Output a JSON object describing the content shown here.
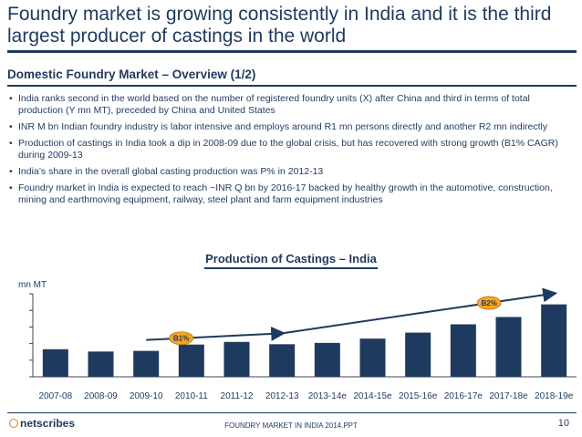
{
  "slide": {
    "title": "Foundry market is growing consistently in India and it is the third largest producer of castings in the world",
    "subtitle": "Domestic Foundry Market – Overview (1/2)",
    "bullets": [
      "India ranks second in the world based on the number of registered foundry units (X) after China and third in terms of total production (Y mn MT), preceded by China and United States",
      "INR M bn Indian foundry industry is labor intensive and employs around R1 mn persons directly and another R2 mn indirectly",
      " Production of castings in India took a dip in 2008-09 due to the global crisis, but has recovered with strong growth (B1% CAGR)  during 2009-13",
      "India’s share in the overall global casting production was P% in 2012-13",
      "Foundry market in India is expected to reach ~INR Q bn by 2016-17 backed by healthy growth in the automotive, construction, mining and earthmoving equipment, railway, steel plant and farm equipment industries"
    ],
    "bullet_char": "•"
  },
  "chart_data": {
    "type": "bar",
    "title": "Production of Castings – India",
    "ylabel": "mn MT",
    "xlabel": "",
    "categories": [
      "2007-08",
      "2008-09",
      "2009-10",
      "2010-11",
      "2011-12",
      "2012-13",
      "2013-14e",
      "2014-15e",
      "2015-16e",
      "2016-17e",
      "2017-18e",
      "2018-19e"
    ],
    "values": [
      8.3,
      7.6,
      7.8,
      9.7,
      10.5,
      9.8,
      10.2,
      11.5,
      13.3,
      15.8,
      18.0,
      21.8
    ],
    "ylim": [
      0,
      25
    ],
    "y_ticks": [
      0,
      5,
      10,
      15,
      20,
      25
    ],
    "tick_labels_shown": false,
    "bar_color": "#1f3a5f",
    "annotations": [
      {
        "label": "B1%",
        "from": "2009-10",
        "to": "2012-13",
        "color": "#f5a623"
      },
      {
        "label": "B2%",
        "from": "2012-13",
        "to": "2018-19e",
        "color": "#f5a623"
      }
    ]
  },
  "footer": {
    "logo": "netscribes",
    "text": "FOUNDRY MARKET IN INDIA 2014.PPT",
    "page": "10"
  },
  "colors": {
    "primary": "#1f3a5f",
    "accent": "#f5a623",
    "logo_accent": "#e8741e"
  }
}
